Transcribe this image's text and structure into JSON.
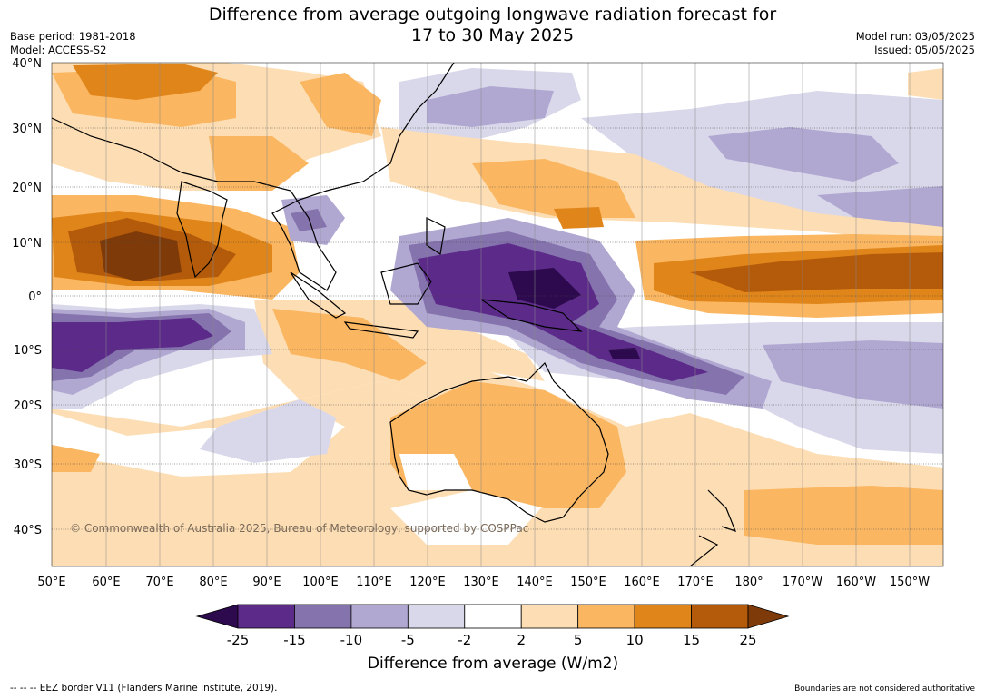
{
  "title_line1": "Difference from average outgoing longwave radiation forecast for",
  "title_line2": "17 to 30 May 2025",
  "base_period": "Base period: 1981-2018",
  "model": "Model: ACCESS-S2",
  "model_run": "Model run: 03/05/2025",
  "issued": "Issued: 05/05/2025",
  "copyright": "© Commonwealth of Australia 2025, Bureau of Meteorology, supported by COSPPac",
  "lon_ticks": [
    "50°E",
    "60°E",
    "70°E",
    "80°E",
    "90°E",
    "100°E",
    "110°E",
    "120°E",
    "130°E",
    "140°E",
    "150°E",
    "160°E",
    "170°E",
    "180°",
    "170°W",
    "160°W",
    "150°W"
  ],
  "lat_ticks": [
    "40°N",
    "30°N",
    "20°N",
    "10°N",
    "0°",
    "10°S",
    "20°S",
    "30°S",
    "40°S"
  ],
  "colorbar": {
    "colors": [
      "#2d0a4e",
      "#5c2b8a",
      "#8573ad",
      "#b1a8d2",
      "#d9d8ea",
      "#ffffff",
      "#fddeb4",
      "#fab661",
      "#e08519",
      "#b45b0b",
      "#7e3a08"
    ],
    "labels": [
      "-25",
      "-15",
      "-10",
      "-5",
      "-2",
      "2",
      "5",
      "10",
      "15",
      "25"
    ],
    "title": "Difference from average (W/m2)"
  },
  "footer_left": "--  --  -- EEZ border V11 (Flanders Marine Institute, 2019).",
  "footer_right": "Boundaries are not considered authoritative"
}
